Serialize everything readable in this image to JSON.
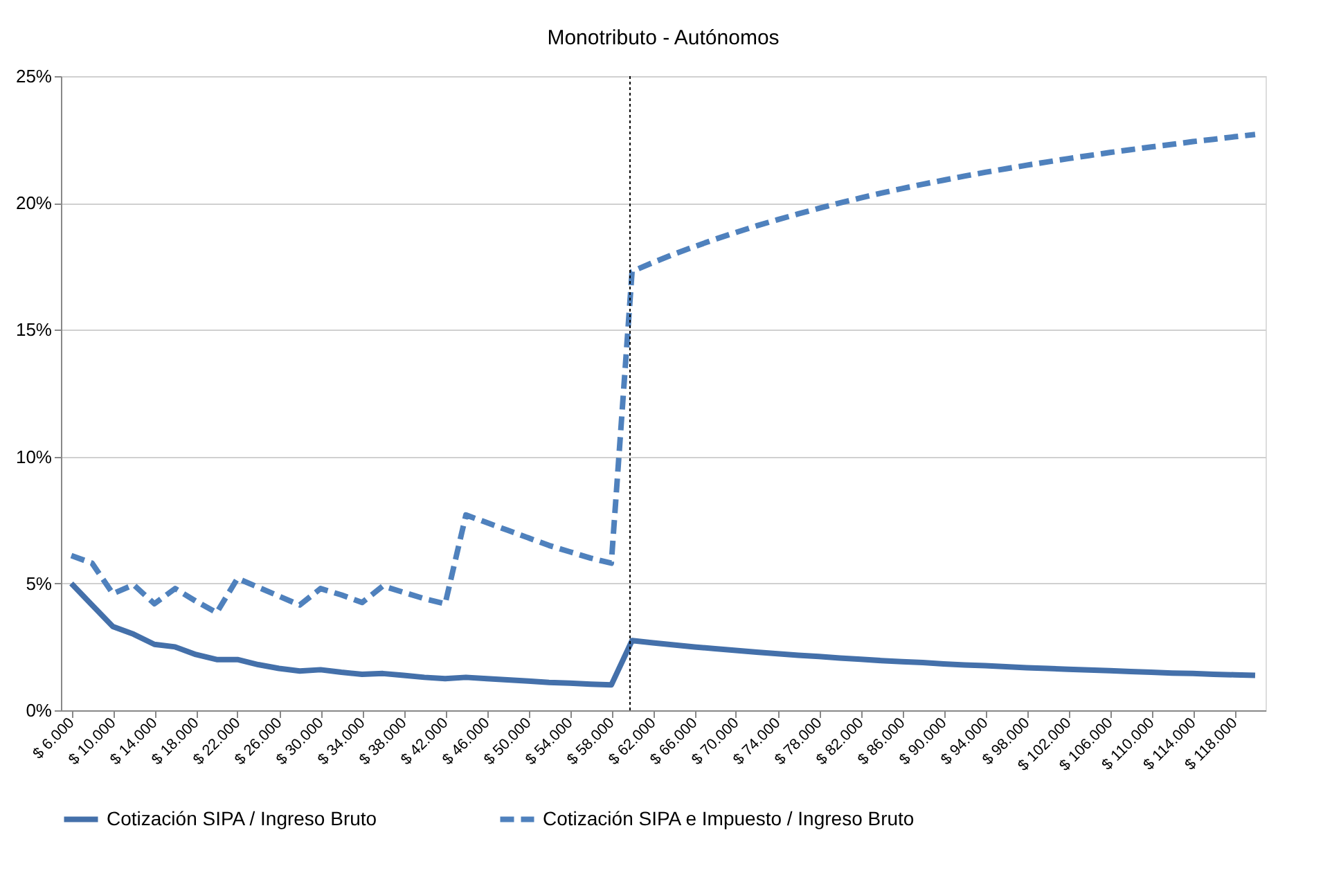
{
  "chart_data": {
    "type": "line",
    "title": "Monotributo - Autónomos",
    "x": [
      6000,
      8000,
      10000,
      12000,
      14000,
      16000,
      18000,
      20000,
      22000,
      24000,
      26000,
      28000,
      30000,
      32000,
      34000,
      36000,
      38000,
      40000,
      42000,
      44000,
      46000,
      48000,
      50000,
      52000,
      54000,
      56000,
      58000,
      60000,
      62000,
      64000,
      66000,
      68000,
      70000,
      72000,
      74000,
      76000,
      78000,
      80000,
      82000,
      84000,
      86000,
      88000,
      90000,
      92000,
      94000,
      96000,
      98000,
      100000,
      102000,
      104000,
      106000,
      108000,
      110000,
      112000,
      114000,
      116000,
      118000,
      120000
    ],
    "series": [
      {
        "name": "Cotización SIPA / Ingreso Bruto",
        "color": "#4470aa",
        "line_style": "solid",
        "values": [
          5.0,
          4.15,
          3.3,
          3.0,
          2.6,
          2.5,
          2.2,
          2.0,
          2.0,
          1.8,
          1.65,
          1.55,
          1.6,
          1.5,
          1.42,
          1.45,
          1.38,
          1.3,
          1.25,
          1.3,
          1.25,
          1.2,
          1.15,
          1.1,
          1.07,
          1.03,
          1.0,
          2.75,
          2.66,
          2.58,
          2.5,
          2.43,
          2.36,
          2.29,
          2.23,
          2.17,
          2.12,
          2.06,
          2.01,
          1.96,
          1.92,
          1.88,
          1.83,
          1.79,
          1.76,
          1.72,
          1.68,
          1.65,
          1.62,
          1.59,
          1.56,
          1.53,
          1.5,
          1.47,
          1.45,
          1.42,
          1.4,
          1.38
        ]
      },
      {
        "name": "Cotización SIPA e Impuesto / Ingreso Bruto",
        "color": "#4f81bd",
        "line_style": "dashed",
        "values": [
          6.1,
          5.8,
          4.6,
          4.95,
          4.2,
          4.8,
          4.3,
          3.85,
          5.2,
          4.85,
          4.5,
          4.15,
          4.8,
          4.55,
          4.25,
          4.9,
          4.65,
          4.4,
          4.2,
          7.7,
          7.4,
          7.1,
          6.8,
          6.5,
          6.25,
          6.0,
          5.8,
          17.3,
          17.65,
          17.98,
          18.28,
          18.57,
          18.84,
          19.1,
          19.34,
          19.57,
          19.79,
          20.0,
          20.2,
          20.39,
          20.57,
          20.74,
          20.9,
          21.06,
          21.21,
          21.35,
          21.49,
          21.62,
          21.75,
          21.87,
          21.99,
          22.1,
          22.21,
          22.31,
          22.42,
          22.51,
          22.61,
          22.7
        ]
      }
    ],
    "xlim": [
      5000,
      121000
    ],
    "xticks": [
      {
        "value": 6000,
        "label": "$ 6.000"
      },
      {
        "value": 10000,
        "label": "$ 10.000"
      },
      {
        "value": 14000,
        "label": "$ 14.000"
      },
      {
        "value": 18000,
        "label": "$ 18.000"
      },
      {
        "value": 22000,
        "label": "$ 22.000"
      },
      {
        "value": 26000,
        "label": "$ 26.000"
      },
      {
        "value": 30000,
        "label": "$ 30.000"
      },
      {
        "value": 34000,
        "label": "$ 34.000"
      },
      {
        "value": 38000,
        "label": "$ 38.000"
      },
      {
        "value": 42000,
        "label": "$ 42.000"
      },
      {
        "value": 46000,
        "label": "$ 46.000"
      },
      {
        "value": 50000,
        "label": "$ 50.000"
      },
      {
        "value": 54000,
        "label": "$ 54.000"
      },
      {
        "value": 58000,
        "label": "$ 58.000"
      },
      {
        "value": 62000,
        "label": "$ 62.000"
      },
      {
        "value": 66000,
        "label": "$ 66.000"
      },
      {
        "value": 70000,
        "label": "$ 70.000"
      },
      {
        "value": 74000,
        "label": "$ 74.000"
      },
      {
        "value": 78000,
        "label": "$ 78.000"
      },
      {
        "value": 82000,
        "label": "$ 82.000"
      },
      {
        "value": 86000,
        "label": "$ 86.000"
      },
      {
        "value": 90000,
        "label": "$ 90.000"
      },
      {
        "value": 94000,
        "label": "$ 94.000"
      },
      {
        "value": 98000,
        "label": "$ 98.000"
      },
      {
        "value": 102000,
        "label": "$ 102.000"
      },
      {
        "value": 106000,
        "label": "$ 106.000"
      },
      {
        "value": 110000,
        "label": "$ 110.000"
      },
      {
        "value": 114000,
        "label": "$ 114.000"
      },
      {
        "value": 118000,
        "label": "$ 118.000"
      }
    ],
    "ylim": [
      0,
      25
    ],
    "yticks": [
      {
        "value": 0,
        "label": "0%"
      },
      {
        "value": 5,
        "label": "5%"
      },
      {
        "value": 10,
        "label": "10%"
      },
      {
        "value": 15,
        "label": "15%"
      },
      {
        "value": 20,
        "label": "20%"
      },
      {
        "value": 25,
        "label": "25%"
      }
    ],
    "ref_lines": [
      {
        "axis": "x",
        "value": 59800,
        "color": "#000000",
        "line_style": "dotted"
      }
    ],
    "grid": "y",
    "legend": "bottom",
    "marker": "none"
  }
}
